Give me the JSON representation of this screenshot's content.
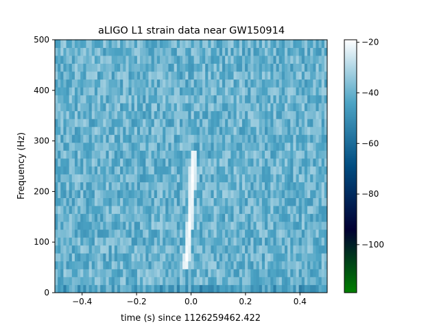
{
  "chart_data": {
    "type": "heatmap",
    "title": "aLIGO L1 strain data near GW150914",
    "xlabel": "time (s) since 1126259462.422",
    "ylabel": "Frequency (Hz)",
    "xlim": [
      -0.5,
      0.5
    ],
    "ylim": [
      0,
      500
    ],
    "x_ticks": [
      -0.4,
      -0.2,
      0.0,
      0.2,
      0.4
    ],
    "x_tick_labels": [
      "−0.4",
      "−0.2",
      "0.0",
      "0.2",
      "0.4"
    ],
    "y_ticks": [
      0,
      100,
      200,
      300,
      400,
      500
    ],
    "y_tick_labels": [
      "0",
      "100",
      "200",
      "300",
      "400",
      "500"
    ],
    "grid": false,
    "colormap": "ocean",
    "colorbar": {
      "range": [
        -119,
        -19
      ],
      "ticks": [
        -20,
        -40,
        -60,
        -80,
        -100
      ],
      "tick_labels": [
        "−20",
        "−40",
        "−60",
        "−80",
        "−100"
      ],
      "colors": [
        "#008000",
        "#000033",
        "#004c80",
        "#4ca3c4",
        "#ffffff"
      ]
    },
    "time_bins": 96,
    "frequency_bins": 32,
    "background_level_db": -40,
    "background_variation_db": 8,
    "chirp": {
      "description_label": "",
      "time_start": -0.03,
      "time_end": 0.01,
      "frequency_start": 40,
      "frequency_end": 280,
      "peak_level_db": -19
    }
  }
}
